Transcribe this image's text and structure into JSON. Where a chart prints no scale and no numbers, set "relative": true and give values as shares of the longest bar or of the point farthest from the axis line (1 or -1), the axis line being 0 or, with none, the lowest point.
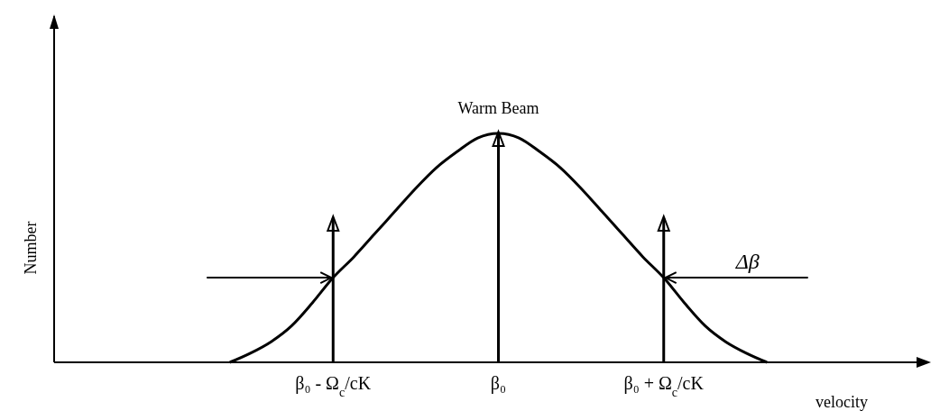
{
  "chart_data": {
    "type": "line",
    "title": "Warm Beam",
    "xlabel": "velocity",
    "ylabel": "Number",
    "relative": true,
    "categories": [
      null,
      null,
      null,
      null,
      null,
      null,
      null,
      null,
      null,
      null,
      null,
      null,
      null,
      "β₀ - Ω$_{c}$/cK",
      null,
      null,
      null,
      null,
      null,
      null,
      null,
      "β₀",
      null,
      null,
      null,
      null,
      null,
      null,
      null,
      "β₀ + Ω$_{c}$/cK",
      null,
      null,
      null,
      null,
      null,
      null,
      null,
      null,
      null,
      null,
      null,
      null
    ],
    "series": [
      {
        "color": "#000000",
        "values": [
          null,
          null,
          null,
          null,
          null,
          null,
          null,
          null,
          0,
          0.04,
          0.09,
          0.16,
          0.26,
          0.37,
          0.46,
          0.56,
          0.66,
          0.76,
          0.85,
          0.92,
          0.98,
          1,
          0.98,
          0.92,
          0.85,
          0.76,
          0.66,
          0.56,
          0.46,
          0.37,
          0.26,
          0.16,
          0.09,
          0.04,
          0,
          null,
          null,
          null,
          null,
          null,
          null,
          null
        ]
      },
      {
        "type": "bar",
        "color": "#000000",
        "values": [
          null,
          null,
          null,
          null,
          null,
          null,
          null,
          null,
          null,
          null,
          null,
          null,
          null,
          0.63,
          null,
          null,
          null,
          null,
          null,
          null,
          null,
          1,
          null,
          null,
          null,
          null,
          null,
          null,
          null,
          0.63,
          null,
          null,
          null,
          null,
          null,
          null,
          null,
          null,
          null,
          null,
          null,
          null
        ]
      }
    ],
    "annotations": [
      "Δβ"
    ]
  }
}
